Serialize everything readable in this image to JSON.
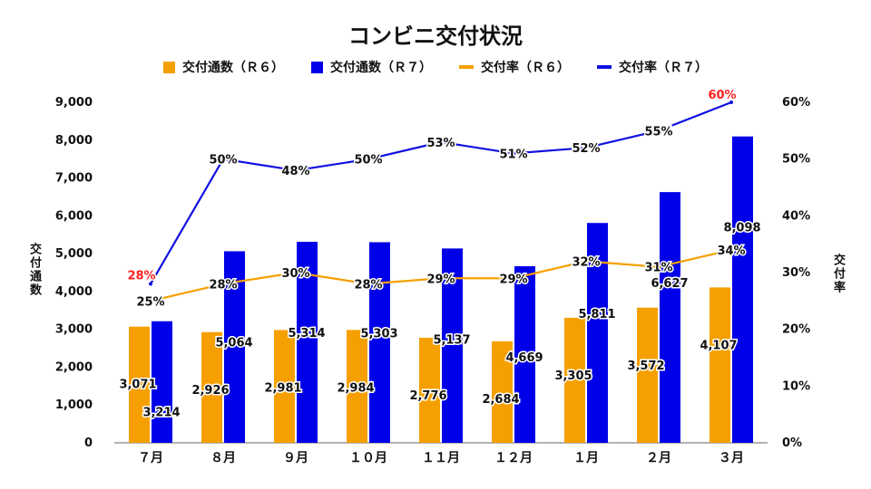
{
  "chart_data": {
    "type": "bar",
    "title": "コンビニ交付状況",
    "categories": [
      "７月",
      "８月",
      "９月",
      "１０月",
      "１１月",
      "１２月",
      "１月",
      "２月",
      "３月"
    ],
    "ylabel": "交付通数",
    "y2label": "交付率",
    "ylim": [
      0,
      9000
    ],
    "y2lim": [
      0,
      60
    ],
    "yticks": [
      "0",
      "1,000",
      "2,000",
      "3,000",
      "4,000",
      "5,000",
      "6,000",
      "7,000",
      "8,000",
      "9,000"
    ],
    "y2ticks": [
      "0%",
      "10%",
      "20%",
      "30%",
      "40%",
      "50%",
      "60%"
    ],
    "legend_position": "top",
    "grid": false,
    "series": [
      {
        "name": "交付通数（Ｒ６）",
        "kind": "bar",
        "color": "#F5A000",
        "values": [
          3071,
          2926,
          2981,
          2984,
          2776,
          2684,
          3305,
          3572,
          4107
        ],
        "labels": [
          "3,071",
          "2,926",
          "2,981",
          "2,984",
          "2,776",
          "2,684",
          "3,305",
          "3,572",
          "4,107"
        ]
      },
      {
        "name": "交付通数（Ｒ７）",
        "kind": "bar",
        "color": "#0000E8",
        "values": [
          3214,
          5064,
          5314,
          5303,
          5137,
          4669,
          5811,
          6627,
          8098
        ],
        "labels": [
          "3,214",
          "5,064",
          "5,314",
          "5,303",
          "5,137",
          "4,669",
          "5,811",
          "6,627",
          "8,098"
        ]
      },
      {
        "name": "交付率（Ｒ６）",
        "kind": "line",
        "axis": "right",
        "color": "#F5A000",
        "values": [
          25,
          28,
          30,
          28,
          29,
          29,
          32,
          31,
          34
        ],
        "labels": [
          "25%",
          "28%",
          "30%",
          "28%",
          "29%",
          "29%",
          "32%",
          "31%",
          "34%"
        ]
      },
      {
        "name": "交付率（Ｒ７）",
        "kind": "line",
        "axis": "right",
        "color": "#1010E0",
        "values": [
          28,
          50,
          48,
          50,
          53,
          51,
          52,
          55,
          60
        ],
        "labels": [
          "28%",
          "50%",
          "48%",
          "50%",
          "53%",
          "51%",
          "52%",
          "55%",
          "60%"
        ],
        "highlight_color": "#FF2020"
      }
    ]
  }
}
